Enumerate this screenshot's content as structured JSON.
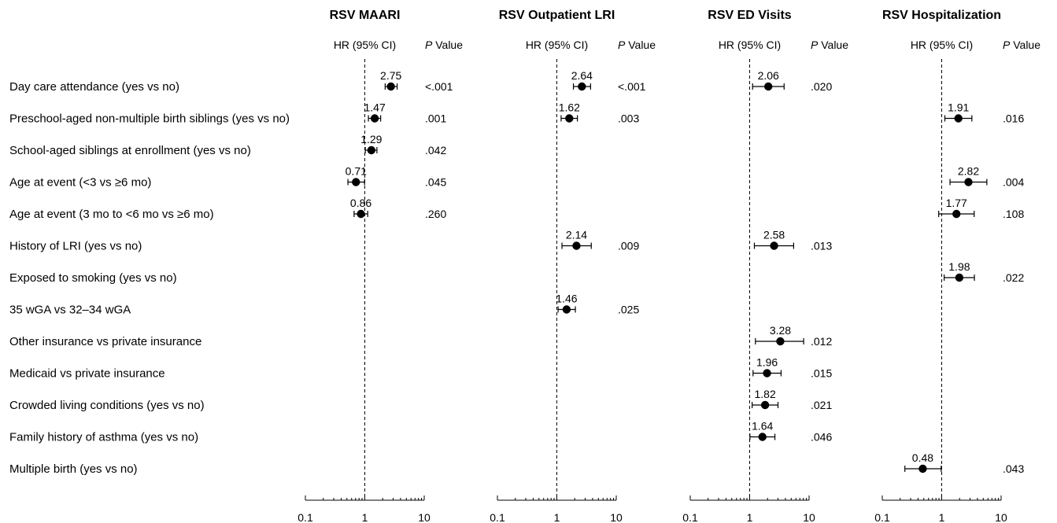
{
  "chart_data": {
    "type": "forest",
    "x_scale": "log",
    "xlim": [
      0.1,
      10
    ],
    "x_ticks": [
      "0.1",
      "1",
      "10"
    ],
    "reference_line": 1,
    "column_headers": {
      "hr": "HR (95% CI)",
      "p_italic": "P",
      "p_rest": " Value"
    },
    "rows": [
      "Day care attendance (yes vs no)",
      "Preschool-aged non-multiple birth siblings (yes vs no)",
      "School-aged siblings at enrollment (yes vs no)",
      "Age at event (<3 vs ≥6 mo)",
      "Age at event (3 mo to <6 mo vs ≥6 mo)",
      "History of LRI (yes vs no)",
      "Exposed to smoking (yes vs no)",
      "35 wGA vs 32–34 wGA",
      "Other insurance vs private insurance",
      "Medicaid vs private insurance",
      "Crowded living conditions (yes vs no)",
      "Family history of asthma (yes vs no)",
      "Multiple birth (yes vs no)"
    ],
    "panels": [
      {
        "title": "RSV MAARI",
        "points": [
          {
            "row": 0,
            "hr": 2.75,
            "lo": 2.2,
            "hi": 3.5,
            "label": "2.75",
            "p": "<.001"
          },
          {
            "row": 1,
            "hr": 1.47,
            "lo": 1.15,
            "hi": 1.85,
            "label": "1.47",
            "p": ".001"
          },
          {
            "row": 2,
            "hr": 1.29,
            "lo": 1.02,
            "hi": 1.6,
            "label": "1.29",
            "p": ".042"
          },
          {
            "row": 3,
            "hr": 0.71,
            "lo": 0.52,
            "hi": 0.99,
            "label": "0.71",
            "p": ".045"
          },
          {
            "row": 4,
            "hr": 0.86,
            "lo": 0.66,
            "hi": 1.12,
            "label": "0.86",
            "p": ".260"
          }
        ]
      },
      {
        "title": "RSV Outpatient LRI",
        "points": [
          {
            "row": 0,
            "hr": 2.64,
            "lo": 1.9,
            "hi": 3.7,
            "label": "2.64",
            "p": "<.001"
          },
          {
            "row": 1,
            "hr": 1.62,
            "lo": 1.18,
            "hi": 2.22,
            "label": "1.62",
            "p": ".003"
          },
          {
            "row": 5,
            "hr": 2.14,
            "lo": 1.22,
            "hi": 3.8,
            "label": "2.14",
            "p": ".009"
          },
          {
            "row": 7,
            "hr": 1.46,
            "lo": 1.05,
            "hi": 2.05,
            "label": "1.46",
            "p": ".025"
          }
        ]
      },
      {
        "title": "RSV ED Visits",
        "points": [
          {
            "row": 0,
            "hr": 2.06,
            "lo": 1.12,
            "hi": 3.8,
            "label": "2.06",
            "p": ".020"
          },
          {
            "row": 5,
            "hr": 2.58,
            "lo": 1.2,
            "hi": 5.5,
            "label": "2.58",
            "p": ".013"
          },
          {
            "row": 8,
            "hr": 3.28,
            "lo": 1.25,
            "hi": 8.1,
            "label": "3.28",
            "p": ".012"
          },
          {
            "row": 9,
            "hr": 1.96,
            "lo": 1.14,
            "hi": 3.38,
            "label": "1.96",
            "p": ".015"
          },
          {
            "row": 10,
            "hr": 1.82,
            "lo": 1.1,
            "hi": 3.0,
            "label": "1.82",
            "p": ".021"
          },
          {
            "row": 11,
            "hr": 1.64,
            "lo": 1.01,
            "hi": 2.66,
            "label": "1.64",
            "p": ".046"
          }
        ]
      },
      {
        "title": "RSV Hospitalization",
        "points": [
          {
            "row": 1,
            "hr": 1.91,
            "lo": 1.13,
            "hi": 3.22,
            "label": "1.91",
            "p": ".016"
          },
          {
            "row": 3,
            "hr": 2.82,
            "lo": 1.38,
            "hi": 5.75,
            "label": "2.82",
            "p": ".004"
          },
          {
            "row": 4,
            "hr": 1.77,
            "lo": 0.89,
            "hi": 3.52,
            "label": "1.77",
            "p": ".108"
          },
          {
            "row": 6,
            "hr": 1.98,
            "lo": 1.1,
            "hi": 3.55,
            "label": "1.98",
            "p": ".022"
          },
          {
            "row": 12,
            "hr": 0.48,
            "lo": 0.24,
            "hi": 0.98,
            "label": "0.48",
            "p": ".043"
          }
        ]
      }
    ]
  }
}
